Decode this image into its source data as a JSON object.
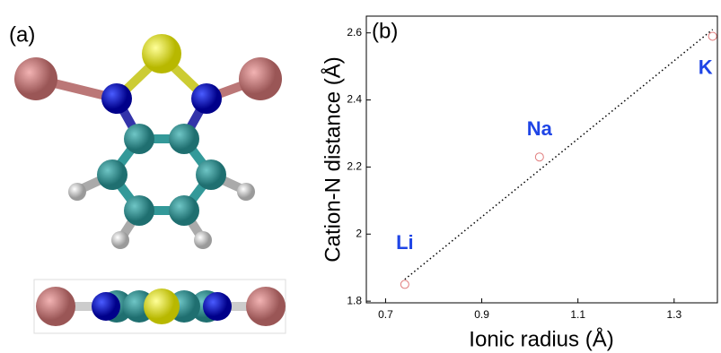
{
  "panel_a": {
    "label": "(a)"
  },
  "chart_data": {
    "type": "scatter",
    "panel_label": "(b)",
    "x_label": "Ionic radius (Å)",
    "y_label": "Cation-N distance (Å)",
    "x": [
      0.74,
      1.02,
      1.38
    ],
    "values": [
      1.85,
      2.23,
      2.59
    ],
    "point_labels": [
      "Li",
      "Na",
      "K"
    ],
    "color": "#e07b7b",
    "fit": {
      "x": [
        0.74,
        1.38
      ],
      "values": [
        1.865,
        2.61
      ],
      "color": "#000000"
    },
    "xlim": [
      0.66,
      1.39
    ],
    "xticks": [
      0.7,
      0.9,
      1.1,
      1.3
    ],
    "ylim": [
      1.795,
      2.65
    ],
    "yticks": [
      1.8,
      2,
      2.2,
      2.4,
      2.6
    ]
  }
}
